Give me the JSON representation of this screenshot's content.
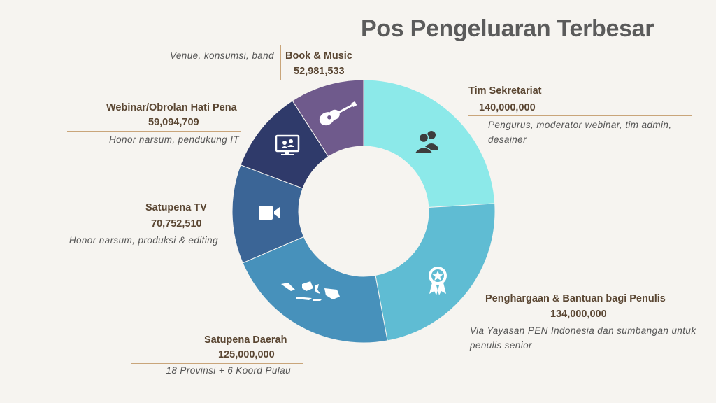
{
  "title": "Pos Pengeluaran Terbesar",
  "chart_data": {
    "type": "pie",
    "donut": true,
    "slices": [
      {
        "name": "Tim Sekretariat",
        "value_label": "140,000,000",
        "value": 140000000,
        "description": "Pengurus, moderator webinar, tim admin, desainer",
        "color": "#8ce9e9",
        "icon": "people-icon"
      },
      {
        "name": "Penghargaan & Bantuan bagi Penulis",
        "value_label": "134,000,000",
        "value": 134000000,
        "description": "Via Yayasan PEN Indonesia dan sumbangan untuk penulis senior",
        "color": "#5fbcd3",
        "icon": "award-ribbon-icon"
      },
      {
        "name": "Satupena Daerah",
        "value_label": "125,000,000",
        "value": 125000000,
        "description": "18 Provinsi + 6 Koord Pulau",
        "color": "#4791bb",
        "icon": "indonesia-map-icon"
      },
      {
        "name": "Satupena TV",
        "value_label": "70,752,510",
        "value": 70752510,
        "description": "Honor narsum, produksi & editing",
        "color": "#3b6596",
        "icon": "video-camera-icon"
      },
      {
        "name": "Webinar/Obrolan Hati Pena",
        "value_label": "59,094,709",
        "value": 59094709,
        "description": "Honor narsum, pendukung IT",
        "color": "#2f3a6a",
        "icon": "monitor-meeting-icon"
      },
      {
        "name": "Book & Music",
        "value_label": "52,981,533",
        "value": 52981533,
        "description": "Venue, konsumsi, band",
        "color": "#6f5a8c",
        "icon": "guitar-icon"
      }
    ]
  }
}
